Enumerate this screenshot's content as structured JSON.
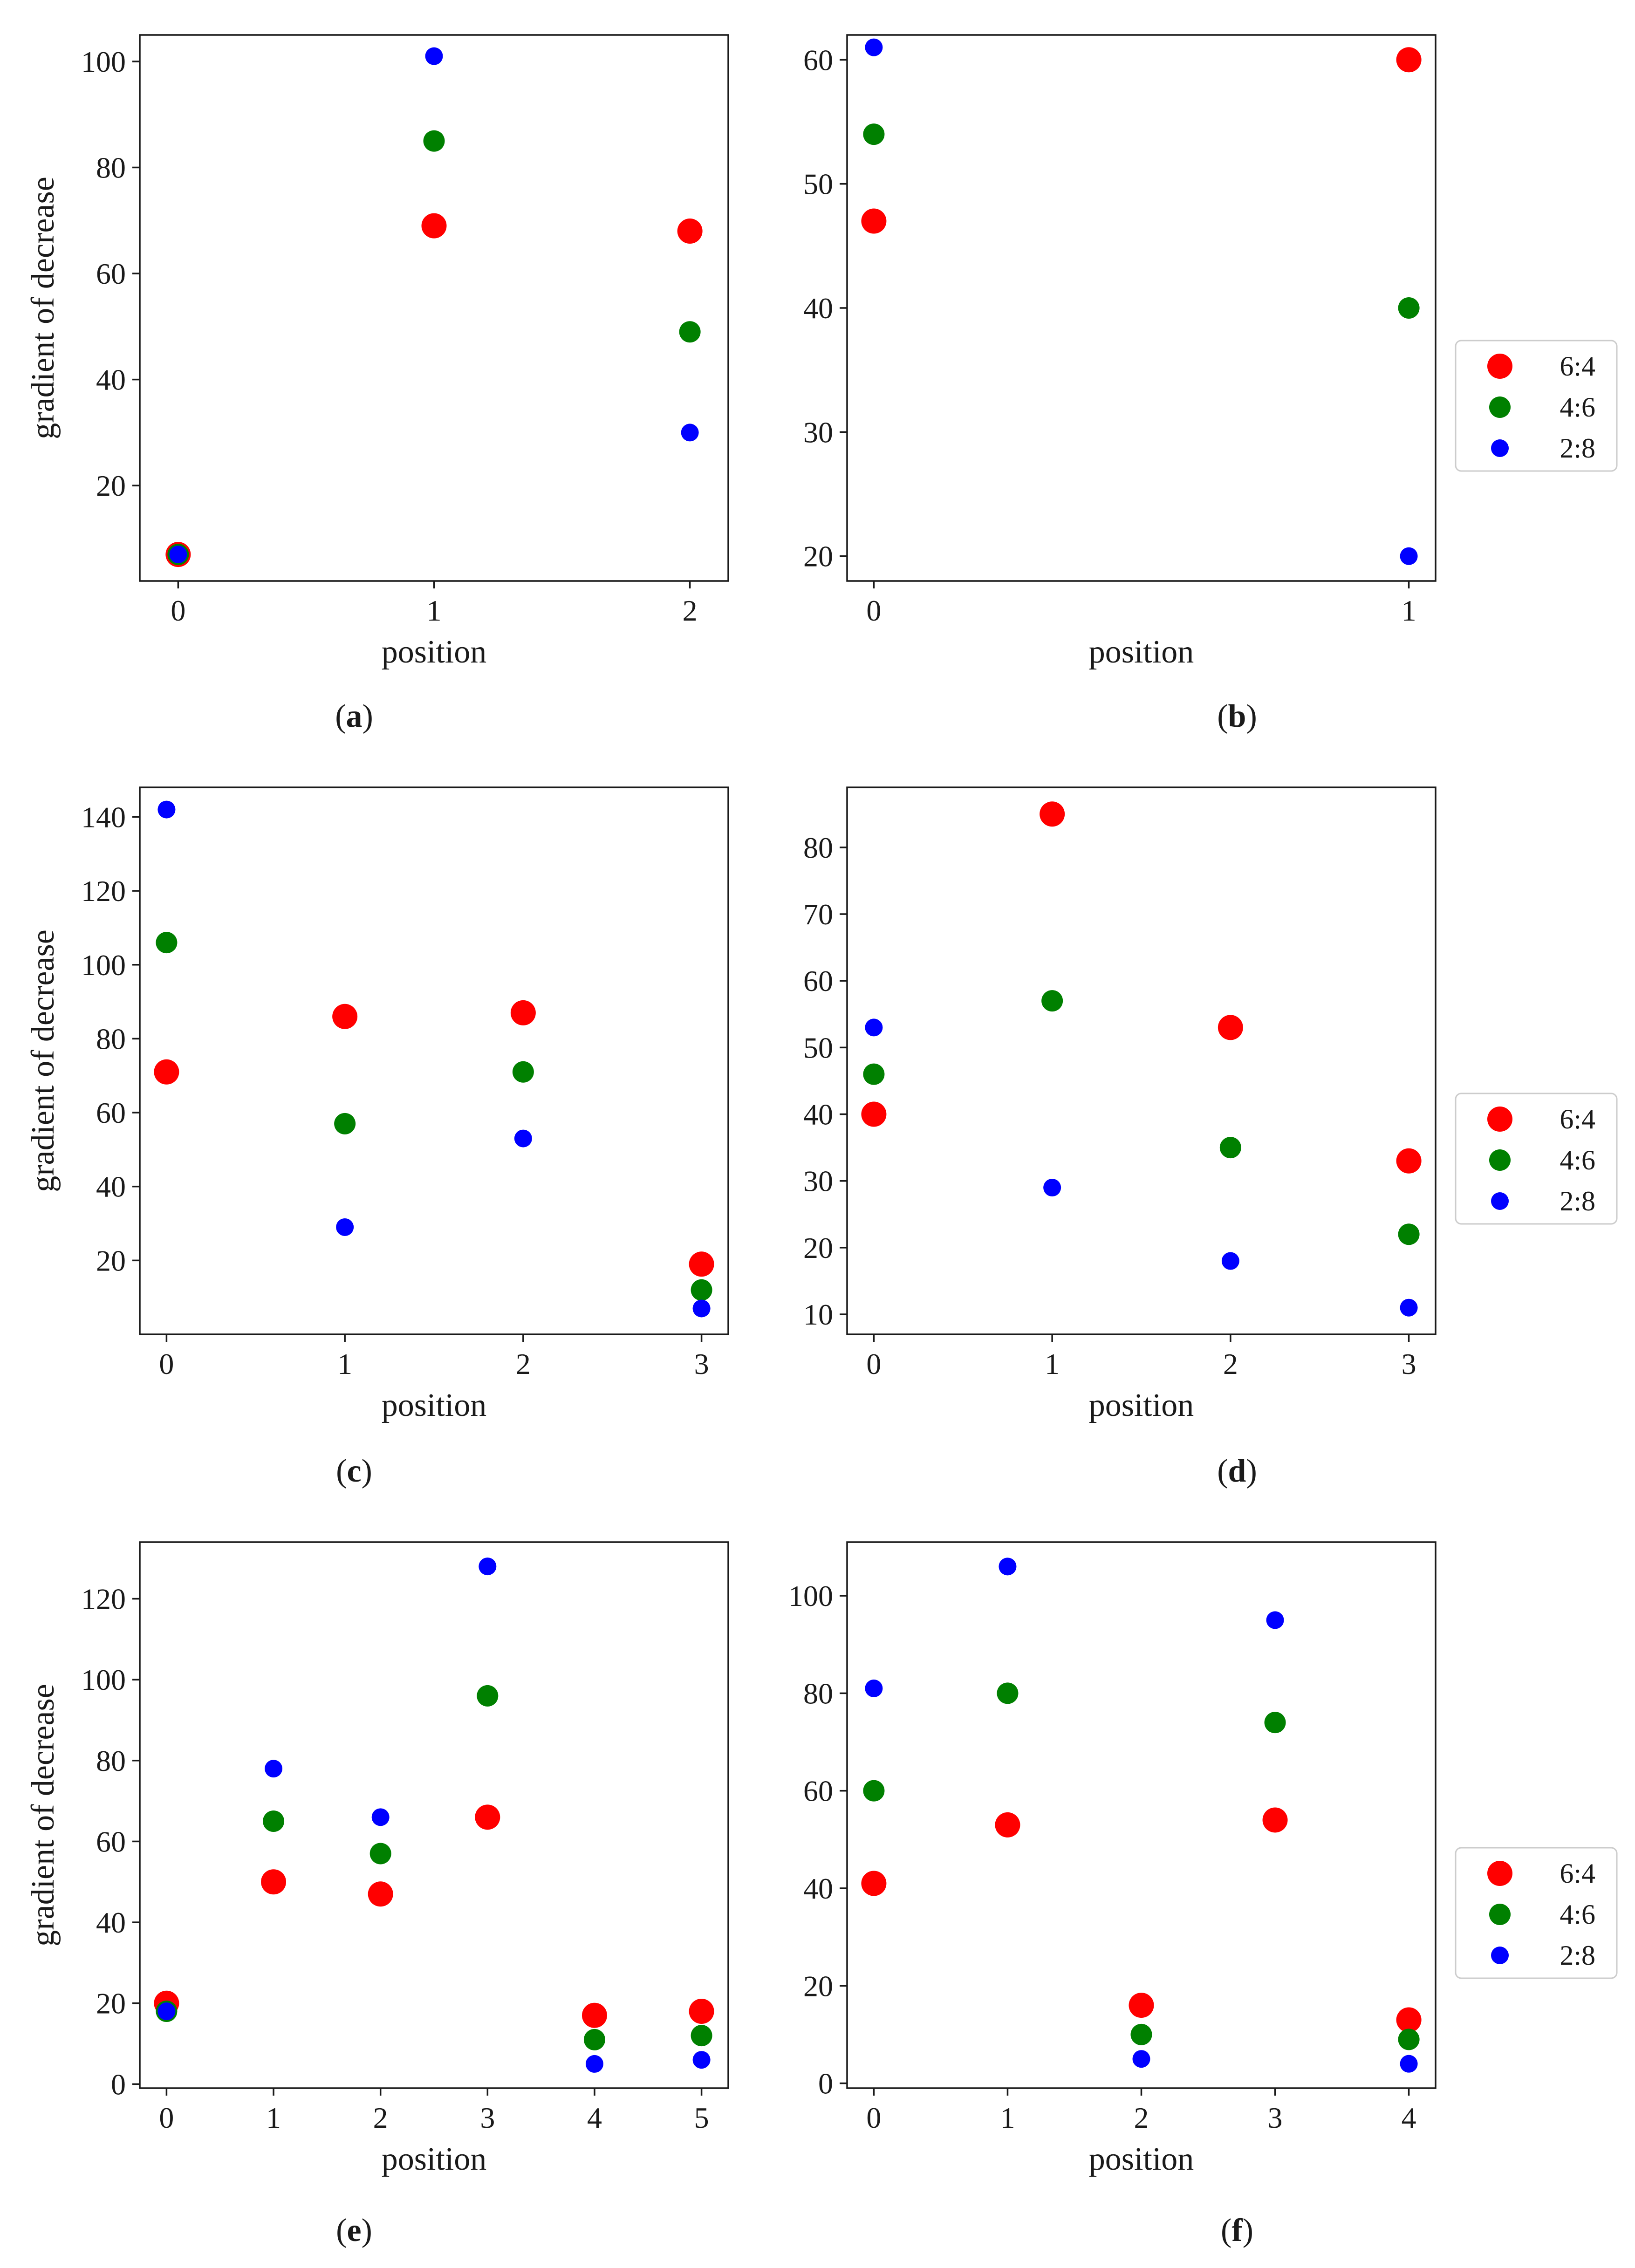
{
  "figure": {
    "captions": [
      "(a)",
      "(b)",
      "(c)",
      "(d)",
      "(e)",
      "(f)"
    ]
  },
  "colors": {
    "6:4": "#ff0000",
    "4:6": "#008000",
    "2:8": "#0000ff"
  },
  "legend": {
    "entries": [
      {
        "label": "6:4",
        "color": "#ff0000"
      },
      {
        "label": "4:6",
        "color": "#008000"
      },
      {
        "label": "2:8",
        "color": "#0000ff"
      }
    ]
  },
  "chart_data": [
    {
      "panel": "(a)",
      "type": "scatter",
      "xlabel": "position",
      "ylabel": "gradient of decrease",
      "xlim": [
        -0.15,
        2.15
      ],
      "ylim": [
        2,
        105
      ],
      "xticks": [
        0,
        1,
        2
      ],
      "yticks": [
        20,
        40,
        60,
        80,
        100
      ],
      "x": [
        0,
        1,
        2
      ],
      "series": [
        {
          "name": "6:4",
          "values": [
            7,
            69,
            68
          ]
        },
        {
          "name": "4:6",
          "values": [
            7,
            85,
            49
          ]
        },
        {
          "name": "2:8",
          "values": [
            7,
            101,
            30
          ]
        }
      ],
      "legend": false
    },
    {
      "panel": "(b)",
      "type": "scatter",
      "xlabel": "position",
      "ylabel": "",
      "xlim": [
        -0.05,
        1.05
      ],
      "ylim": [
        18,
        62
      ],
      "xticks": [
        0,
        1
      ],
      "yticks": [
        20,
        30,
        40,
        50,
        60
      ],
      "x": [
        0,
        1
      ],
      "series": [
        {
          "name": "6:4",
          "values": [
            47,
            60
          ]
        },
        {
          "name": "4:6",
          "values": [
            54,
            40
          ]
        },
        {
          "name": "2:8",
          "values": [
            61,
            20
          ]
        }
      ],
      "legend": true
    },
    {
      "panel": "(c)",
      "type": "scatter",
      "xlabel": "position",
      "ylabel": "gradient of decrease",
      "xlim": [
        -0.15,
        3.15
      ],
      "ylim": [
        0,
        148
      ],
      "xticks": [
        0,
        1,
        2,
        3
      ],
      "yticks": [
        20,
        40,
        60,
        80,
        100,
        120,
        140
      ],
      "x": [
        0,
        1,
        2,
        3
      ],
      "series": [
        {
          "name": "6:4",
          "values": [
            71,
            86,
            87,
            19
          ]
        },
        {
          "name": "4:6",
          "values": [
            106,
            57,
            71,
            12
          ]
        },
        {
          "name": "2:8",
          "values": [
            142,
            29,
            53,
            7
          ]
        }
      ],
      "legend": false
    },
    {
      "panel": "(d)",
      "type": "scatter",
      "xlabel": "position",
      "ylabel": "",
      "xlim": [
        -0.15,
        3.15
      ],
      "ylim": [
        7,
        89
      ],
      "xticks": [
        0,
        1,
        2,
        3
      ],
      "yticks": [
        10,
        20,
        30,
        40,
        50,
        60,
        70,
        80
      ],
      "x": [
        0,
        1,
        2,
        3
      ],
      "series": [
        {
          "name": "6:4",
          "values": [
            40,
            85,
            53,
            33
          ]
        },
        {
          "name": "4:6",
          "values": [
            46,
            57,
            35,
            22
          ]
        },
        {
          "name": "2:8",
          "values": [
            53,
            29,
            18,
            11
          ]
        }
      ],
      "legend": true
    },
    {
      "panel": "(e)",
      "type": "scatter",
      "xlabel": "position",
      "ylabel": "gradient of decrease",
      "xlim": [
        -0.25,
        5.25
      ],
      "ylim": [
        -1,
        134
      ],
      "xticks": [
        0,
        1,
        2,
        3,
        4,
        5
      ],
      "yticks": [
        0,
        20,
        40,
        60,
        80,
        100,
        120
      ],
      "x": [
        0,
        1,
        2,
        3,
        4,
        5
      ],
      "series": [
        {
          "name": "6:4",
          "values": [
            20,
            50,
            47,
            66,
            17,
            18
          ]
        },
        {
          "name": "4:6",
          "values": [
            18,
            65,
            57,
            96,
            11,
            12
          ]
        },
        {
          "name": "2:8",
          "values": [
            18,
            78,
            66,
            128,
            5,
            6
          ]
        }
      ],
      "legend": false
    },
    {
      "panel": "(f)",
      "type": "scatter",
      "xlabel": "position",
      "ylabel": "",
      "xlim": [
        -0.2,
        4.2
      ],
      "ylim": [
        -1,
        111
      ],
      "xticks": [
        0,
        1,
        2,
        3,
        4
      ],
      "yticks": [
        0,
        20,
        40,
        60,
        80,
        100
      ],
      "x": [
        0,
        1,
        2,
        3,
        4
      ],
      "series": [
        {
          "name": "6:4",
          "values": [
            41,
            53,
            16,
            54,
            13
          ]
        },
        {
          "name": "4:6",
          "values": [
            60,
            80,
            10,
            74,
            9
          ]
        },
        {
          "name": "2:8",
          "values": [
            81,
            106,
            5,
            95,
            4
          ]
        }
      ],
      "legend": true
    }
  ]
}
